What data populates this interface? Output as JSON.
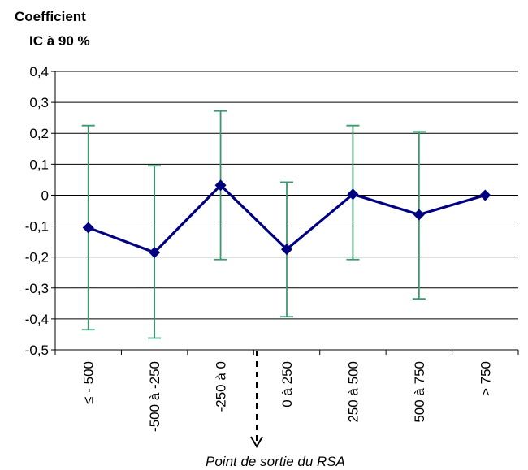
{
  "chart_data": {
    "type": "line",
    "ylabel_lines": [
      "Coefficient",
      "IC à 90 %"
    ],
    "categories": [
      "≤ - 500",
      "-500 à -250",
      "-250 à 0",
      "0 à 250",
      "250 à 500",
      "500 à 750",
      "> 750"
    ],
    "series": [
      {
        "values": [
          -0.105,
          -0.185,
          0.032,
          -0.175,
          0.003,
          -0.063,
          0.0
        ],
        "ci_low": [
          -0.435,
          -0.462,
          -0.208,
          -0.393,
          -0.208,
          -0.335,
          null
        ],
        "ci_high": [
          0.225,
          0.095,
          0.272,
          0.042,
          0.225,
          0.205,
          null
        ],
        "color": "#000080"
      }
    ],
    "error_bar_color": "#3a9a6e",
    "yticks": [
      "0,4",
      "0,3",
      "0,2",
      "0,1",
      "0",
      "-0,1",
      "-0,2",
      "-0,3",
      "-0,4",
      "-0,5"
    ],
    "ylim": [
      -0.5,
      0.4
    ],
    "grid": true,
    "annotation": "Point de sortie du RSA"
  }
}
